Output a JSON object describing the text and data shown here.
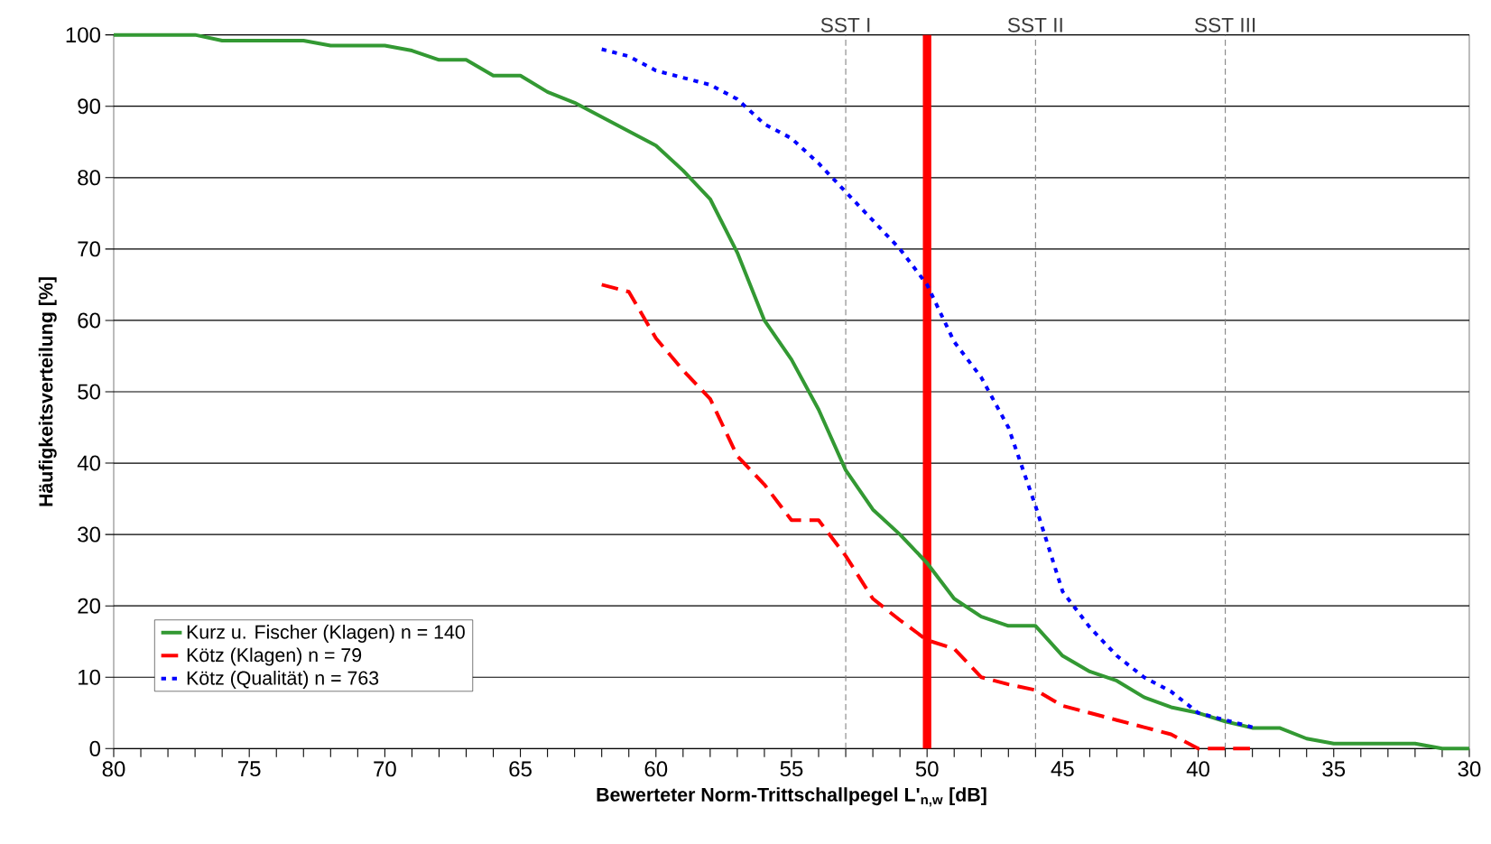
{
  "chart_data": {
    "type": "line",
    "xlabel": "Bewerteter Norm-Trittschallpegel L'$_{n,w}$ [dB]",
    "ylabel": "Häufigkeitsverteilung [%]",
    "xlim": [
      80,
      30
    ],
    "xticks": [
      80,
      75,
      70,
      65,
      60,
      55,
      50,
      45,
      40,
      35,
      30
    ],
    "ylim": [
      0,
      100
    ],
    "yticks": [
      0,
      10,
      20,
      30,
      40,
      50,
      60,
      70,
      80,
      90,
      100
    ],
    "grid": "y",
    "legend": "bottom left",
    "series": [
      {
        "name": "Kurz u. Fischer (Klagen) n = 140",
        "color": "#339933",
        "line_style": "solid",
        "x": [
          80,
          79,
          78,
          77,
          76,
          75,
          74,
          73,
          72,
          71,
          70,
          69,
          68,
          67,
          66,
          65,
          64,
          63,
          62,
          61,
          60,
          59,
          58,
          57,
          56,
          55,
          54,
          53,
          52,
          51,
          50,
          49,
          48,
          47,
          46,
          45,
          44,
          43,
          42,
          41,
          40,
          39,
          38,
          37,
          36,
          35,
          34,
          33,
          32,
          31,
          30
        ],
        "values": [
          100,
          100,
          100,
          100,
          99.2,
          99.2,
          99.2,
          99.2,
          98.5,
          98.5,
          98.5,
          97.8,
          96.5,
          96.5,
          94.3,
          94.3,
          92,
          90.5,
          88.5,
          86.5,
          84.5,
          81,
          77,
          69.5,
          60,
          54.5,
          47.5,
          39,
          33.5,
          30,
          26,
          21,
          18.5,
          17.2,
          17.2,
          13,
          10.8,
          9.5,
          7.2,
          5.8,
          5,
          3.8,
          2.9,
          2.9,
          1.4,
          0.7,
          0.7,
          0.7,
          0.7,
          0,
          0
        ]
      },
      {
        "name": "Kötz (Klagen) n = 79",
        "color": "#ff0000",
        "line_style": "dashed",
        "x": [
          62,
          61,
          60,
          59,
          58,
          57,
          56,
          55,
          54,
          53,
          52,
          51,
          50,
          49,
          48,
          47,
          46,
          45,
          44,
          43,
          42,
          41,
          40,
          39,
          38
        ],
        "values": [
          65,
          64,
          57.5,
          53,
          49,
          41,
          37,
          32,
          32,
          27,
          21,
          18,
          15.2,
          14,
          10,
          9,
          8.2,
          6,
          5,
          4,
          3,
          2,
          0,
          0,
          0
        ]
      },
      {
        "name": "Kötz (Qualität) n = 763",
        "color": "#0000ff",
        "line_style": "dotted",
        "x": [
          62,
          61,
          60,
          59,
          58,
          57,
          56,
          55,
          54,
          53,
          52,
          51,
          50,
          49,
          48,
          47,
          46,
          45,
          44,
          43,
          42,
          41,
          40,
          39,
          38
        ],
        "values": [
          98,
          97,
          95,
          94,
          93,
          91,
          87.5,
          85.5,
          82,
          78,
          74,
          70,
          65,
          57,
          52,
          45,
          34,
          22,
          17,
          13,
          10,
          8,
          5,
          4,
          3
        ]
      }
    ],
    "ref_lines": [
      {
        "axis": "x",
        "value": 53,
        "label": "SST I",
        "color": "#808080",
        "line_style": "dashed"
      },
      {
        "axis": "x",
        "value": 46,
        "label": "SST II",
        "color": "#808080",
        "line_style": "dashed"
      },
      {
        "axis": "x",
        "value": 39,
        "label": "SST III",
        "color": "#808080",
        "line_style": "dashed"
      },
      {
        "axis": "x",
        "value": 50,
        "color": "#ff0000",
        "line_style": "solid"
      }
    ]
  }
}
